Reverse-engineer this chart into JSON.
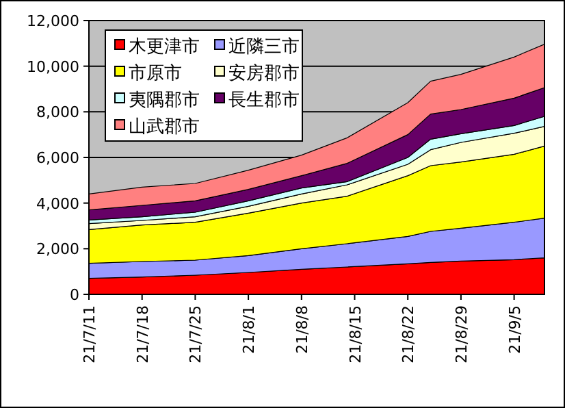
{
  "chart_data": {
    "type": "area",
    "stacked": true,
    "x": [
      "--07-11",
      "--07-18",
      "--07-25",
      "--08-01",
      "--08-08",
      "--08-14",
      "--08-22",
      "--08-25",
      "--08-29",
      "--09-05",
      "--09-09"
    ],
    "series": [
      {
        "name": "木更津市",
        "color": "#ff0000",
        "values": [
          700,
          760,
          840,
          960,
          1100,
          1200,
          1340,
          1400,
          1460,
          1520,
          1600
        ]
      },
      {
        "name": "近隣三市",
        "color": "#9999ff",
        "values": [
          660,
          680,
          660,
          740,
          900,
          1020,
          1200,
          1360,
          1440,
          1640,
          1740
        ]
      },
      {
        "name": "市原市",
        "color": "#ffff00",
        "values": [
          1480,
          1600,
          1660,
          1860,
          2000,
          2080,
          2660,
          2880,
          2900,
          2980,
          3160
        ]
      },
      {
        "name": "安房郡市",
        "color": "#ffffcc",
        "values": [
          260,
          200,
          240,
          300,
          400,
          500,
          500,
          700,
          860,
          920,
          860
        ]
      },
      {
        "name": "夷隅郡市",
        "color": "#ccffff",
        "values": [
          160,
          160,
          200,
          240,
          260,
          140,
          300,
          460,
          380,
          340,
          440
        ]
      },
      {
        "name": "長生郡市",
        "color": "#660066",
        "values": [
          440,
          500,
          500,
          500,
          540,
          800,
          1000,
          1100,
          1060,
          1200,
          1260
        ]
      },
      {
        "name": "山武郡市",
        "color": "#ff8080",
        "values": [
          700,
          800,
          760,
          840,
          900,
          1120,
          1400,
          1440,
          1540,
          1800,
          1900
        ]
      }
    ],
    "xlim": [
      "--07-11",
      "--09-09"
    ],
    "xticks": [
      {
        "value": "--07-11",
        "label": "21/7/11"
      },
      {
        "value": "--07-18",
        "label": "21/7/18"
      },
      {
        "value": "--07-25",
        "label": "21/7/25"
      },
      {
        "value": "--08-01",
        "label": "21/8/1"
      },
      {
        "value": "--08-08",
        "label": "21/8/8"
      },
      {
        "value": "--08-15",
        "label": "21/8/15"
      },
      {
        "value": "--08-22",
        "label": "21/8/22"
      },
      {
        "value": "--08-29",
        "label": "21/8/29"
      },
      {
        "value": "--09-05",
        "label": "21/9/5"
      }
    ],
    "ylim": [
      0,
      12000
    ],
    "yticks": [
      {
        "value": 0,
        "label": "0"
      },
      {
        "value": 2000,
        "label": "2,000"
      },
      {
        "value": 4000,
        "label": "4,000"
      },
      {
        "value": 6000,
        "label": "6,000"
      },
      {
        "value": 8000,
        "label": "8,000"
      },
      {
        "value": 10000,
        "label": "10,000"
      },
      {
        "value": 12000,
        "label": "12,000"
      }
    ],
    "grid": "y",
    "legend": "top left"
  }
}
